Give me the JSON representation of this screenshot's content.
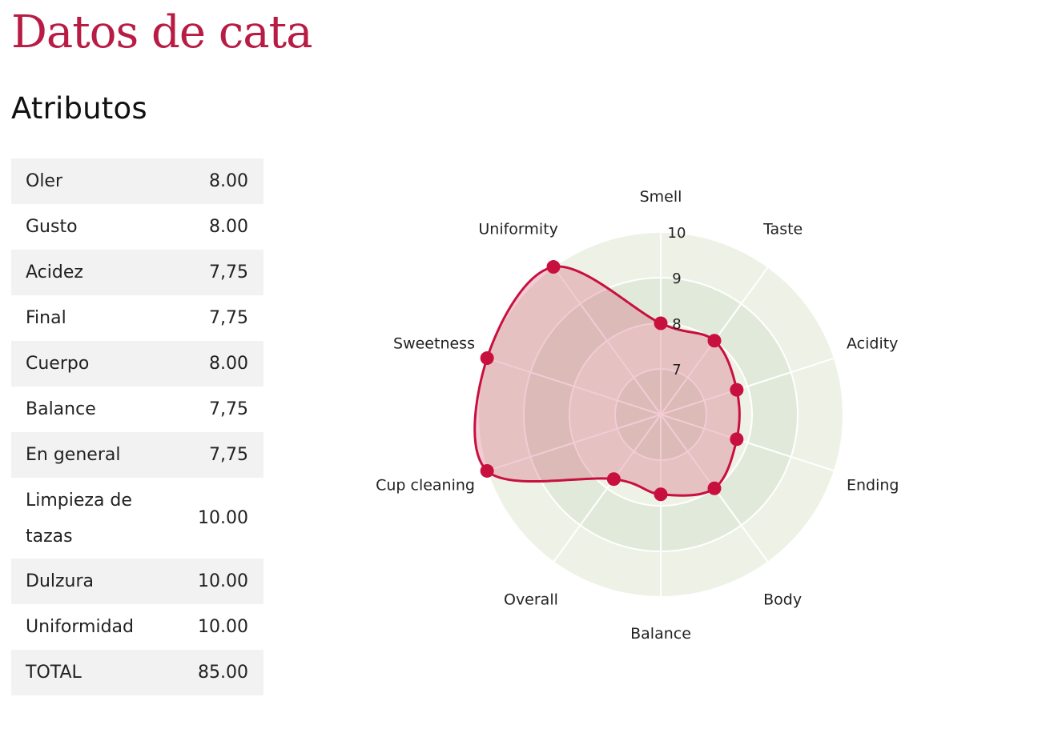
{
  "page": {
    "title": "Datos de cata",
    "section": "Atributos"
  },
  "table": {
    "rows": [
      {
        "label": "Oler",
        "value": "8.00"
      },
      {
        "label": "Gusto",
        "value": "8.00"
      },
      {
        "label": "Acidez",
        "value": "7,75"
      },
      {
        "label": "Final",
        "value": "7,75"
      },
      {
        "label": "Cuerpo",
        "value": "8.00"
      },
      {
        "label": "Balance",
        "value": "7,75"
      },
      {
        "label": "En general",
        "value": "7,75"
      },
      {
        "label": "Limpieza de tazas",
        "value": "10.00"
      },
      {
        "label": "Dulzura",
        "value": "10.00"
      },
      {
        "label": "Uniformidad",
        "value": "10.00"
      },
      {
        "label": "TOTAL",
        "value": "85.00"
      }
    ]
  },
  "chart_data": {
    "type": "radar",
    "categories": [
      "Smell",
      "Taste",
      "Acidity",
      "Ending",
      "Body",
      "Balance",
      "Overall",
      "Cup cleaning",
      "Sweetness",
      "Uniformity"
    ],
    "values": [
      8.0,
      8.0,
      7.75,
      7.75,
      8.0,
      7.75,
      7.75,
      10.0,
      10.0,
      10.0
    ],
    "rlim": [
      6,
      10
    ],
    "ticks": [
      7,
      8,
      9,
      10
    ],
    "colors": {
      "series": "#c8103f",
      "fill": "rgba(200,16,63,0.22)",
      "band_outer": "#eef2e6",
      "band_inner": "#e1eada",
      "grid": "#ffffff"
    }
  }
}
